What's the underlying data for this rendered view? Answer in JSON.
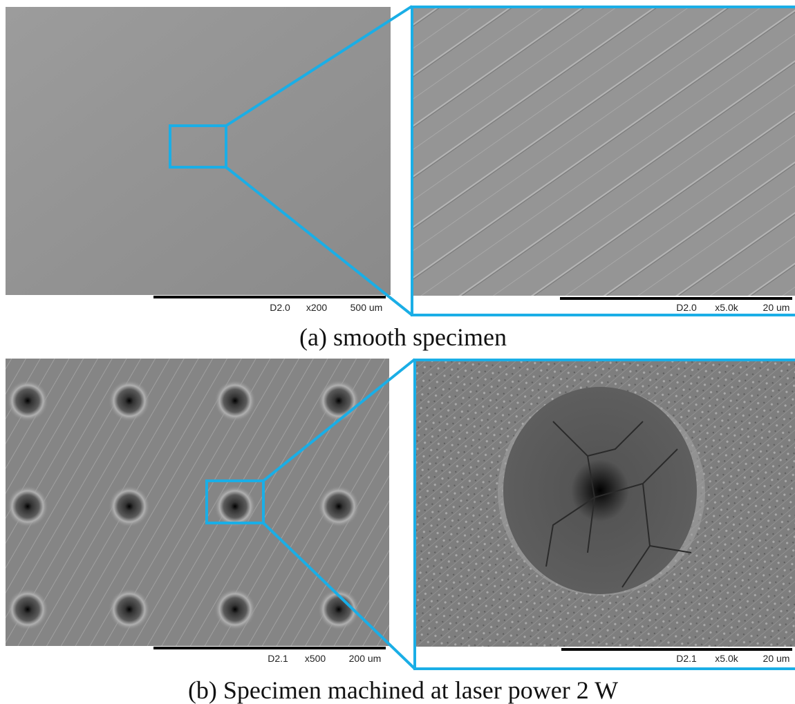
{
  "panels": [
    {
      "caption": "(a) smooth specimen",
      "overview": {
        "scale_bar": {
          "detector": "D2.0",
          "magnification": "x200",
          "length": "500 um"
        }
      },
      "zoom": {
        "scale_bar": {
          "detector": "D2.0",
          "magnification": "x5.0k",
          "length": "20 um"
        }
      }
    },
    {
      "caption": "(b) Specimen machined at laser power 2 W",
      "overview": {
        "scale_bar": {
          "detector": "D2.1",
          "magnification": "x500",
          "length": "200 um"
        }
      },
      "zoom": {
        "scale_bar": {
          "detector": "D2.1",
          "magnification": "x5.0k",
          "length": "20 um"
        }
      }
    }
  ]
}
